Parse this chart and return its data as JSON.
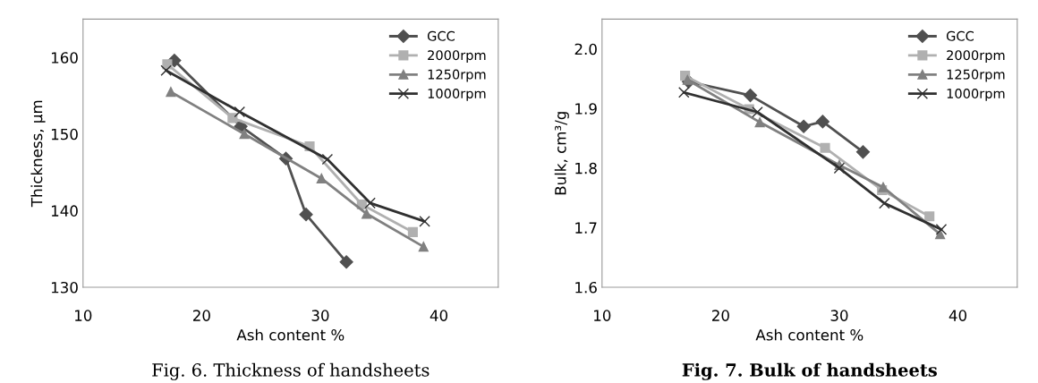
{
  "chart_data": [
    {
      "type": "line",
      "title": "Fig. 6. Thickness of handsheets",
      "xlabel": "Ash content %",
      "ylabel": "Thickness, µm",
      "xlim": [
        10,
        45
      ],
      "xticks": [
        10,
        20,
        30,
        40
      ],
      "ylim": [
        130,
        165
      ],
      "yticks": [
        130,
        140,
        150,
        160
      ],
      "grid": false,
      "legend": "top right",
      "series": [
        {
          "name": "GCC",
          "color": "#505050",
          "marker": "diamond",
          "x": [
            17.7,
            23.3,
            27.1,
            28.8,
            32.2
          ],
          "values": [
            159.6,
            151,
            146.8,
            139.5,
            133.3
          ]
        },
        {
          "name": "2000rpm",
          "color": "#b0b0b0",
          "marker": "square",
          "x": [
            17.1,
            22.6,
            29.1,
            33.5,
            37.8
          ],
          "values": [
            159.1,
            152.1,
            148.4,
            140.8,
            137.2
          ]
        },
        {
          "name": "1250rpm",
          "color": "#808080",
          "marker": "triangle",
          "x": [
            17.4,
            23.6,
            30.1,
            33.9,
            38.7
          ],
          "values": [
            155.5,
            150,
            144.2,
            139.6,
            135.3
          ]
        },
        {
          "name": "1000rpm",
          "color": "#303030",
          "marker": "cross",
          "x": [
            17.0,
            23.2,
            30.6,
            34.2,
            38.8
          ],
          "values": [
            158.3,
            152.9,
            146.7,
            141,
            138.6
          ]
        }
      ]
    },
    {
      "type": "line",
      "title": "Fig. 7. Bulk of handsheets",
      "xlabel": "Ash content %",
      "ylabel": "Bulk, cm³/g",
      "xlim": [
        10,
        45
      ],
      "xticks": [
        10,
        20,
        30,
        40
      ],
      "ylim": [
        1.6,
        2.05
      ],
      "yticks": [
        {
          "value": 1.6,
          "label": "1.6"
        },
        {
          "value": 1.7,
          "label": "1.7"
        },
        {
          "value": 1.8,
          "label": "1.8"
        },
        {
          "value": 1.9,
          "label": "1.9"
        },
        {
          "value": 2.0,
          "label": "2.0"
        }
      ],
      "grid": false,
      "legend": "top right",
      "series": [
        {
          "name": "GCC",
          "color": "#505050",
          "marker": "diamond",
          "x": [
            17.3,
            22.5,
            27.0,
            28.6,
            32.0
          ],
          "values": [
            1.945,
            1.922,
            1.87,
            1.878,
            1.827
          ]
        },
        {
          "name": "2000rpm",
          "color": "#b0b0b0",
          "marker": "square",
          "x": [
            17.0,
            22.4,
            28.8,
            33.6,
            37.6
          ],
          "values": [
            1.955,
            1.899,
            1.834,
            1.763,
            1.719
          ]
        },
        {
          "name": "1250rpm",
          "color": "#808080",
          "marker": "triangle",
          "x": [
            17.2,
            23.3,
            30.0,
            33.7,
            38.5
          ],
          "values": [
            1.948,
            1.877,
            1.805,
            1.768,
            1.689
          ]
        },
        {
          "name": "1000rpm",
          "color": "#303030",
          "marker": "cross",
          "x": [
            16.9,
            23.1,
            30.0,
            33.8,
            38.6
          ],
          "values": [
            1.927,
            1.894,
            1.8,
            1.741,
            1.697
          ]
        }
      ]
    }
  ]
}
